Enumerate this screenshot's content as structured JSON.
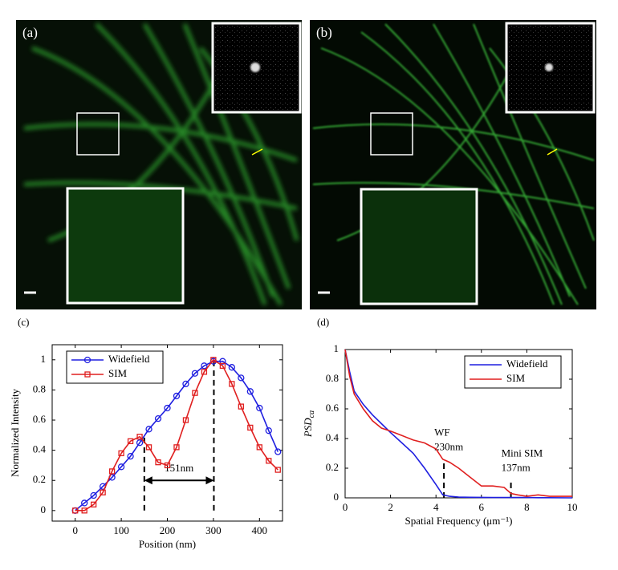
{
  "panels": [
    {
      "label": "(a)"
    },
    {
      "label": "(b)"
    }
  ],
  "chart_data": [
    {
      "type": "line",
      "panel_label": "(c)",
      "xlabel": "Position (nm)",
      "ylabel": "Normalized Intensity",
      "x": [
        0,
        20,
        40,
        60,
        80,
        100,
        120,
        140,
        160,
        180,
        200,
        220,
        240,
        260,
        280,
        300,
        320,
        340,
        360,
        380,
        400,
        420,
        440
      ],
      "series": [
        {
          "name": "Widefield",
          "color": "#1f1fe0",
          "marker": "circle",
          "values": [
            0,
            0.05,
            0.1,
            0.16,
            0.22,
            0.29,
            0.36,
            0.45,
            0.54,
            0.61,
            0.68,
            0.76,
            0.84,
            0.91,
            0.96,
            0.99,
            0.99,
            0.95,
            0.88,
            0.79,
            0.68,
            0.53,
            0.39
          ]
        },
        {
          "name": "SIM",
          "color": "#e01f1f",
          "marker": "square",
          "values": [
            0,
            0,
            0.04,
            0.12,
            0.26,
            0.38,
            0.46,
            0.49,
            0.42,
            0.32,
            0.3,
            0.42,
            0.6,
            0.78,
            0.92,
            1.0,
            0.96,
            0.84,
            0.69,
            0.55,
            0.42,
            0.33,
            0.27
          ]
        }
      ],
      "xlim": [
        -50,
        450
      ],
      "xticks": [
        0,
        100,
        200,
        300,
        400
      ],
      "ylim": [
        -0.07,
        1.1
      ],
      "yticks": [
        0,
        0.2,
        0.4,
        0.6,
        0.8,
        1
      ],
      "legend": "upper-left",
      "vlines": [
        {
          "x": 150,
          "ymax": 0.5
        },
        {
          "x": 301,
          "ymax": 1
        }
      ],
      "arrow": {
        "text": "151nm",
        "x1": 150,
        "x2": 301,
        "y": 0.2
      }
    },
    {
      "type": "line",
      "panel_label": "(d)",
      "xlabel": "Spatial Frequency (μm⁻¹)",
      "ylabel": "PSD",
      "ylabel_sub": "ca",
      "x": [
        0,
        0.2,
        0.4,
        0.8,
        1.2,
        1.6,
        2,
        2.5,
        3,
        3.5,
        4,
        4.3,
        4.6,
        5,
        5.5,
        6,
        6.5,
        7,
        7.3,
        7.6,
        8,
        8.5,
        9,
        10
      ],
      "series": [
        {
          "name": "Widefield",
          "color": "#1f1fe0",
          "marker": "none",
          "values": [
            1,
            0.85,
            0.72,
            0.63,
            0.56,
            0.5,
            0.44,
            0.37,
            0.3,
            0.2,
            0.09,
            0.02,
            0.01,
            0.005,
            0.004,
            0.003,
            0.002,
            0.002,
            0.002,
            0.002,
            0.002,
            0.001,
            0.001,
            0
          ]
        },
        {
          "name": "SIM",
          "color": "#e01f1f",
          "marker": "none",
          "values": [
            1,
            0.82,
            0.7,
            0.6,
            0.52,
            0.47,
            0.45,
            0.42,
            0.39,
            0.37,
            0.33,
            0.26,
            0.24,
            0.2,
            0.14,
            0.08,
            0.08,
            0.07,
            0.03,
            0.02,
            0.01,
            0.02,
            0.01,
            0.01
          ]
        }
      ],
      "xlim": [
        0,
        10
      ],
      "xticks": [
        0,
        2,
        4,
        6,
        8,
        10
      ],
      "ylim": [
        0,
        1
      ],
      "yticks": [
        0,
        0.2,
        0.4,
        0.6,
        0.8,
        1
      ],
      "legend": "upper-right",
      "markers": [
        {
          "x": 4.35,
          "ymax": 0.25,
          "lines": [
            "WF",
            "230nm"
          ]
        },
        {
          "x": 7.3,
          "ymax": 0.11,
          "lines": [
            "Mini SIM",
            "137nm"
          ]
        }
      ]
    }
  ]
}
